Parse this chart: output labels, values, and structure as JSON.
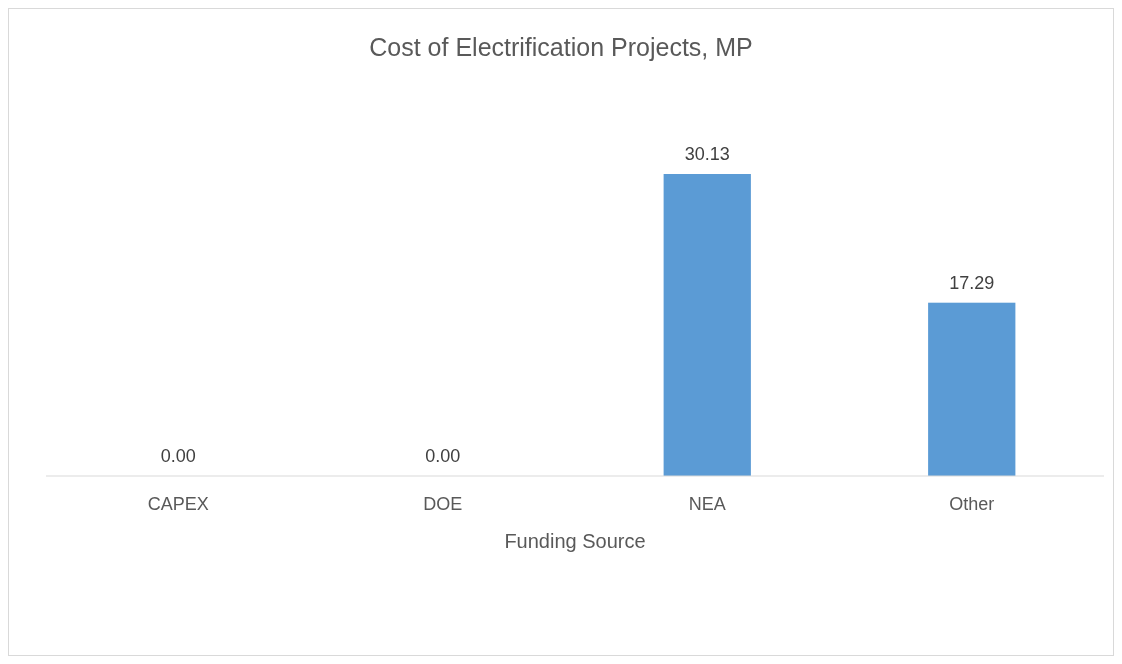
{
  "chart_data": {
    "type": "bar",
    "title": "Cost of Electrification Projects, MP",
    "xlabel": "Funding Source",
    "categories": [
      "CAPEX",
      "DOE",
      "NEA",
      "Other"
    ],
    "values": [
      0,
      0,
      30.13,
      17.29
    ],
    "value_labels": [
      "0.00",
      "0.00",
      "30.13",
      "17.29"
    ],
    "color": "#5b9bd5"
  }
}
